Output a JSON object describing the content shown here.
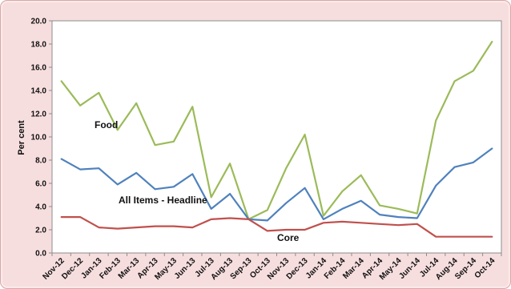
{
  "chart_data": {
    "type": "line",
    "ylabel": "Per cent",
    "ylim": [
      0,
      20
    ],
    "yticks": [
      "0.0",
      "2.0",
      "4.0",
      "6.0",
      "8.0",
      "10.0",
      "12.0",
      "14.0",
      "16.0",
      "18.0",
      "20.0"
    ],
    "grid": false,
    "categories": [
      "Nov-12",
      "Dec-12",
      "Jan-13",
      "Feb-13",
      "Mar-13",
      "Apr-13",
      "May-13",
      "Jun-13",
      "Jul-13",
      "Aug-13",
      "Sep-13",
      "Oct-13",
      "Nov-13",
      "Dec-13",
      "Jan-14",
      "Feb-14",
      "Mar-14",
      "Apr-14",
      "May-14",
      "Jun-14",
      "Jul-14",
      "Aug-14",
      "Sep-14",
      "Oct-14"
    ],
    "series": [
      {
        "name": "Food",
        "color": "#9bbb59",
        "values": [
          14.8,
          12.7,
          13.8,
          10.6,
          12.9,
          9.3,
          9.6,
          12.6,
          4.8,
          7.7,
          2.9,
          3.7,
          7.3,
          10.2,
          3.2,
          5.3,
          6.7,
          4.1,
          3.8,
          3.4,
          11.4,
          14.8,
          15.7,
          18.2
        ]
      },
      {
        "name": "All Items - Headline",
        "color": "#4f81bd",
        "values": [
          8.1,
          7.2,
          7.3,
          5.9,
          6.9,
          5.5,
          5.7,
          6.8,
          3.8,
          5.1,
          2.9,
          2.8,
          4.3,
          5.6,
          2.9,
          3.8,
          4.5,
          3.3,
          3.1,
          3.0,
          5.8,
          7.4,
          7.8,
          9.0
        ]
      },
      {
        "name": "Core",
        "color": "#c0504d",
        "values": [
          3.1,
          3.1,
          2.2,
          2.1,
          2.2,
          2.3,
          2.3,
          2.2,
          2.9,
          3.0,
          2.9,
          1.9,
          2.0,
          2.0,
          2.6,
          2.7,
          2.6,
          2.5,
          2.4,
          2.5,
          1.4,
          1.4,
          1.4,
          1.4
        ]
      }
    ]
  }
}
